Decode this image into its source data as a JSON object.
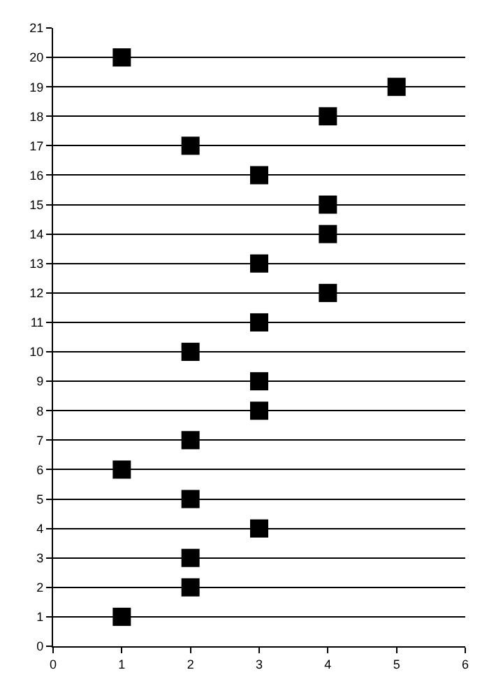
{
  "chart_data": {
    "type": "scatter",
    "x": [
      1,
      2,
      2,
      3,
      2,
      1,
      2,
      3,
      3,
      2,
      3,
      4,
      3,
      4,
      4,
      3,
      2,
      4,
      5,
      1
    ],
    "series": [
      {
        "color": "#000000",
        "values": [
          1,
          2,
          3,
          4,
          5,
          6,
          7,
          8,
          9,
          10,
          11,
          12,
          13,
          14,
          15,
          16,
          17,
          18,
          19,
          20
        ]
      }
    ],
    "xlim": [
      0,
      6
    ],
    "xticks": [
      0,
      1,
      2,
      3,
      4,
      5,
      6
    ],
    "ylim": [
      0,
      21
    ],
    "yticks": [
      0,
      1,
      2,
      3,
      4,
      5,
      6,
      7,
      8,
      9,
      10,
      11,
      12,
      13,
      14,
      15,
      16,
      17,
      18,
      19,
      20,
      21
    ],
    "grid": "y",
    "marker": "square",
    "legend": false
  }
}
